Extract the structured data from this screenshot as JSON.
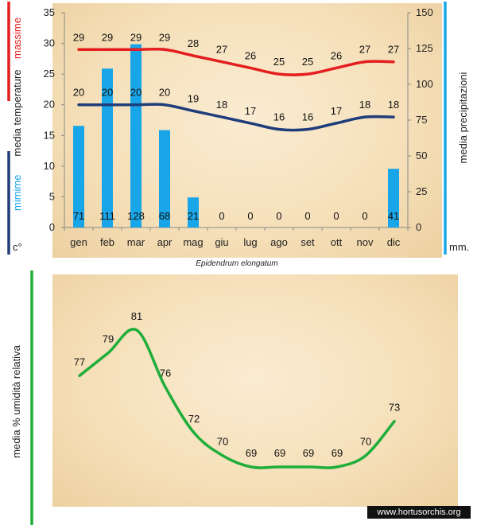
{
  "chart_data": [
    {
      "type": "bar+line",
      "categories": [
        "gen",
        "feb",
        "mar",
        "apr",
        "mag",
        "giu",
        "lug",
        "ago",
        "set",
        "ott",
        "nov",
        "dic"
      ],
      "series": [
        {
          "name": "massime",
          "kind": "line",
          "axis": "left",
          "color": "#e41e1e",
          "values": [
            29,
            29,
            29,
            29,
            28,
            27,
            26,
            25,
            25,
            26,
            27,
            27
          ]
        },
        {
          "name": "minime",
          "kind": "line",
          "axis": "left",
          "color": "#1f3d7a",
          "values": [
            20,
            20,
            20,
            20,
            19,
            18,
            17,
            16,
            16,
            17,
            18,
            18
          ]
        },
        {
          "name": "precipitazioni",
          "kind": "bar",
          "axis": "right",
          "color": "#19a6e8",
          "values": [
            71,
            111,
            128,
            68,
            21,
            0,
            0,
            0,
            0,
            0,
            0,
            41
          ]
        }
      ],
      "left_axis": {
        "ylim": [
          0,
          35
        ],
        "ticks": [
          0,
          5,
          10,
          15,
          20,
          25,
          30,
          35
        ],
        "label_parts": [
          "massime",
          "media  temperature",
          "mimime"
        ],
        "unit": "c°"
      },
      "right_axis": {
        "ylim": [
          0,
          150
        ],
        "ticks": [
          0,
          25,
          50,
          75,
          100,
          125,
          150
        ],
        "label": "media  precipitazioni",
        "unit": "mm."
      },
      "caption": "Epidendrum elongatum"
    },
    {
      "type": "line",
      "categories": [
        "gen",
        "feb",
        "mar",
        "apr",
        "mag",
        "giu",
        "lug",
        "ago",
        "set",
        "ott",
        "nov",
        "dic"
      ],
      "values": [
        77,
        79,
        81,
        76,
        72,
        70,
        69,
        69,
        69,
        69,
        70,
        73
      ],
      "ylabel": "media %  umidità relativa",
      "color": "#1fae3a"
    }
  ],
  "credit": "www.hortusorchis.org",
  "colors": {
    "red": "#e41e1e",
    "navy": "#1f3d7a",
    "blue": "#19a6e8",
    "green": "#1fae3a"
  }
}
